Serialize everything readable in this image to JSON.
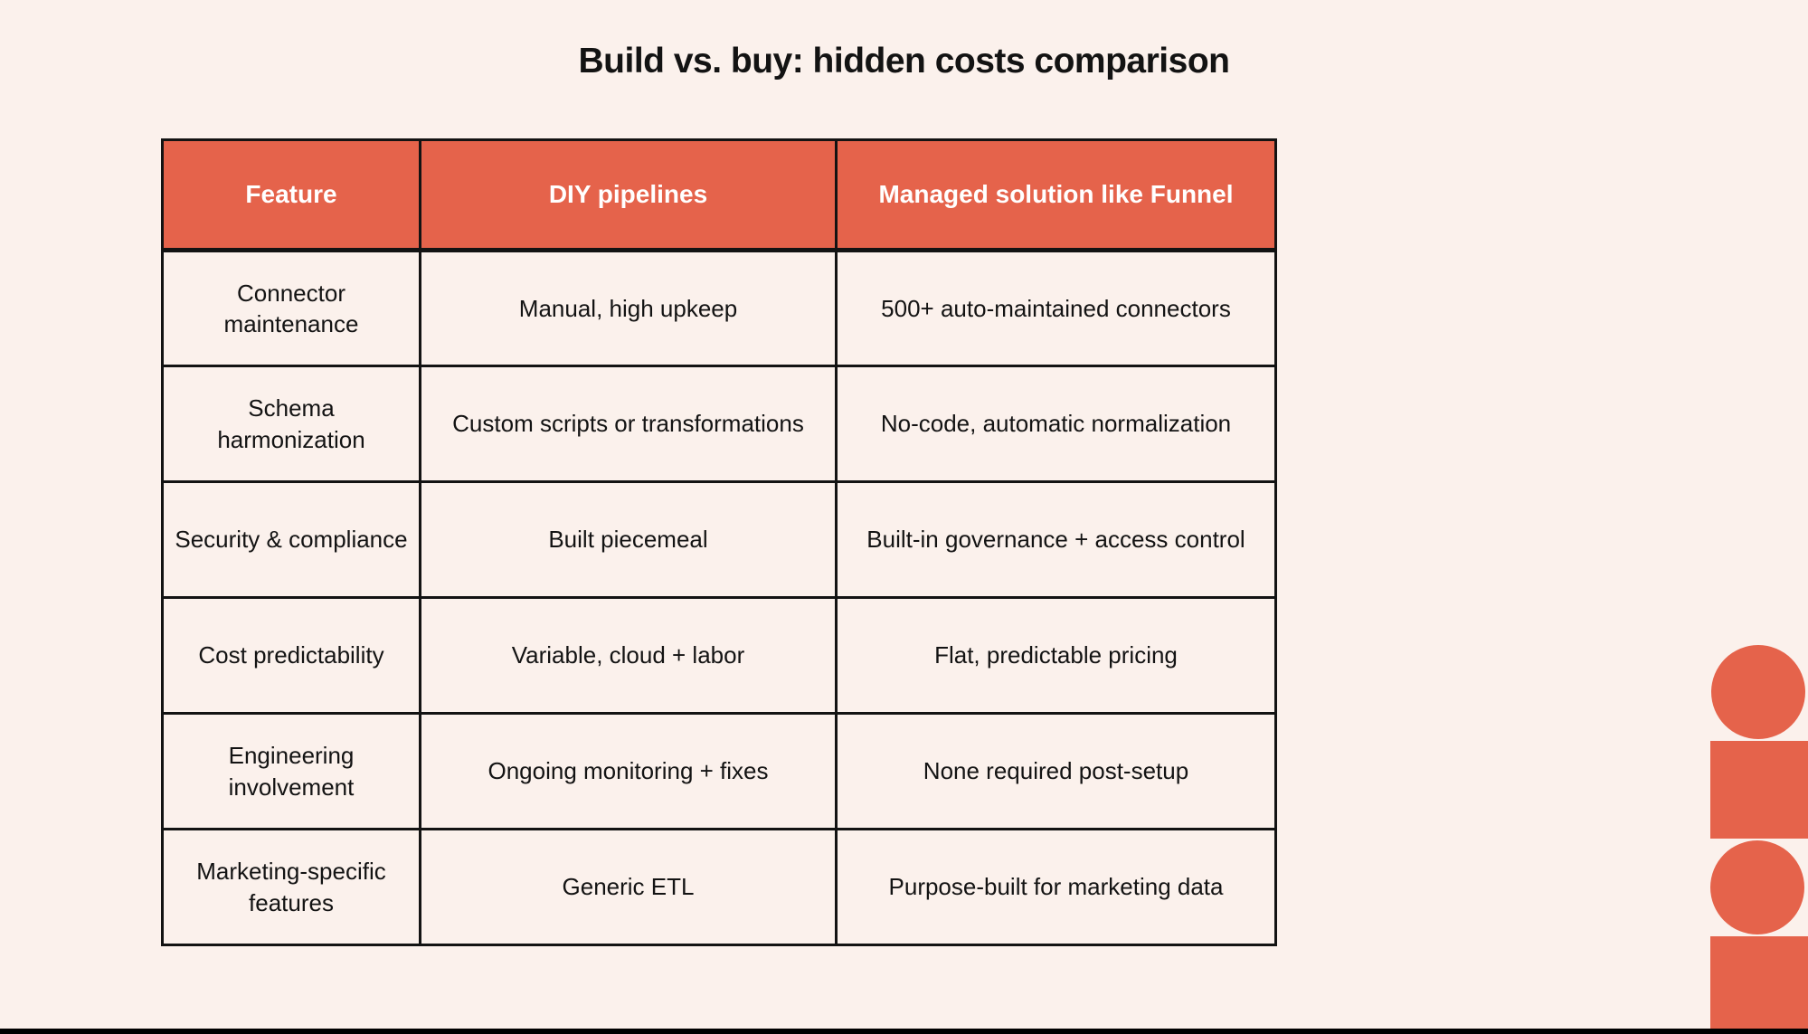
{
  "title": "Build vs. buy: hidden costs comparison",
  "colors": {
    "background": "#FBF1EC",
    "accent": "#E5634B",
    "table_border": "#131313",
    "header_text": "#FFFFFF",
    "body_text": "#131313",
    "bottom_bar": "#000000"
  },
  "table": {
    "columns": [
      "Feature",
      "DIY pipelines",
      "Managed solution like Funnel"
    ],
    "rows": [
      [
        "Connector maintenance",
        "Manual, high upkeep",
        "500+ auto-maintained connectors"
      ],
      [
        "Schema harmonization",
        "Custom scripts or transformations",
        "No-code, automatic normalization"
      ],
      [
        "Security & compliance",
        "Built piecemeal",
        "Built-in governance + access control"
      ],
      [
        "Cost predictability",
        "Variable, cloud + labor",
        "Flat, predictable pricing"
      ],
      [
        "Engineering involvement",
        "Ongoing monitoring + fixes",
        "None required post-setup"
      ],
      [
        "Marketing-specific features",
        "Generic ETL",
        "Purpose-built for marketing data"
      ]
    ]
  },
  "decoration": {
    "shapes": [
      "circle",
      "square",
      "circle",
      "square"
    ]
  }
}
